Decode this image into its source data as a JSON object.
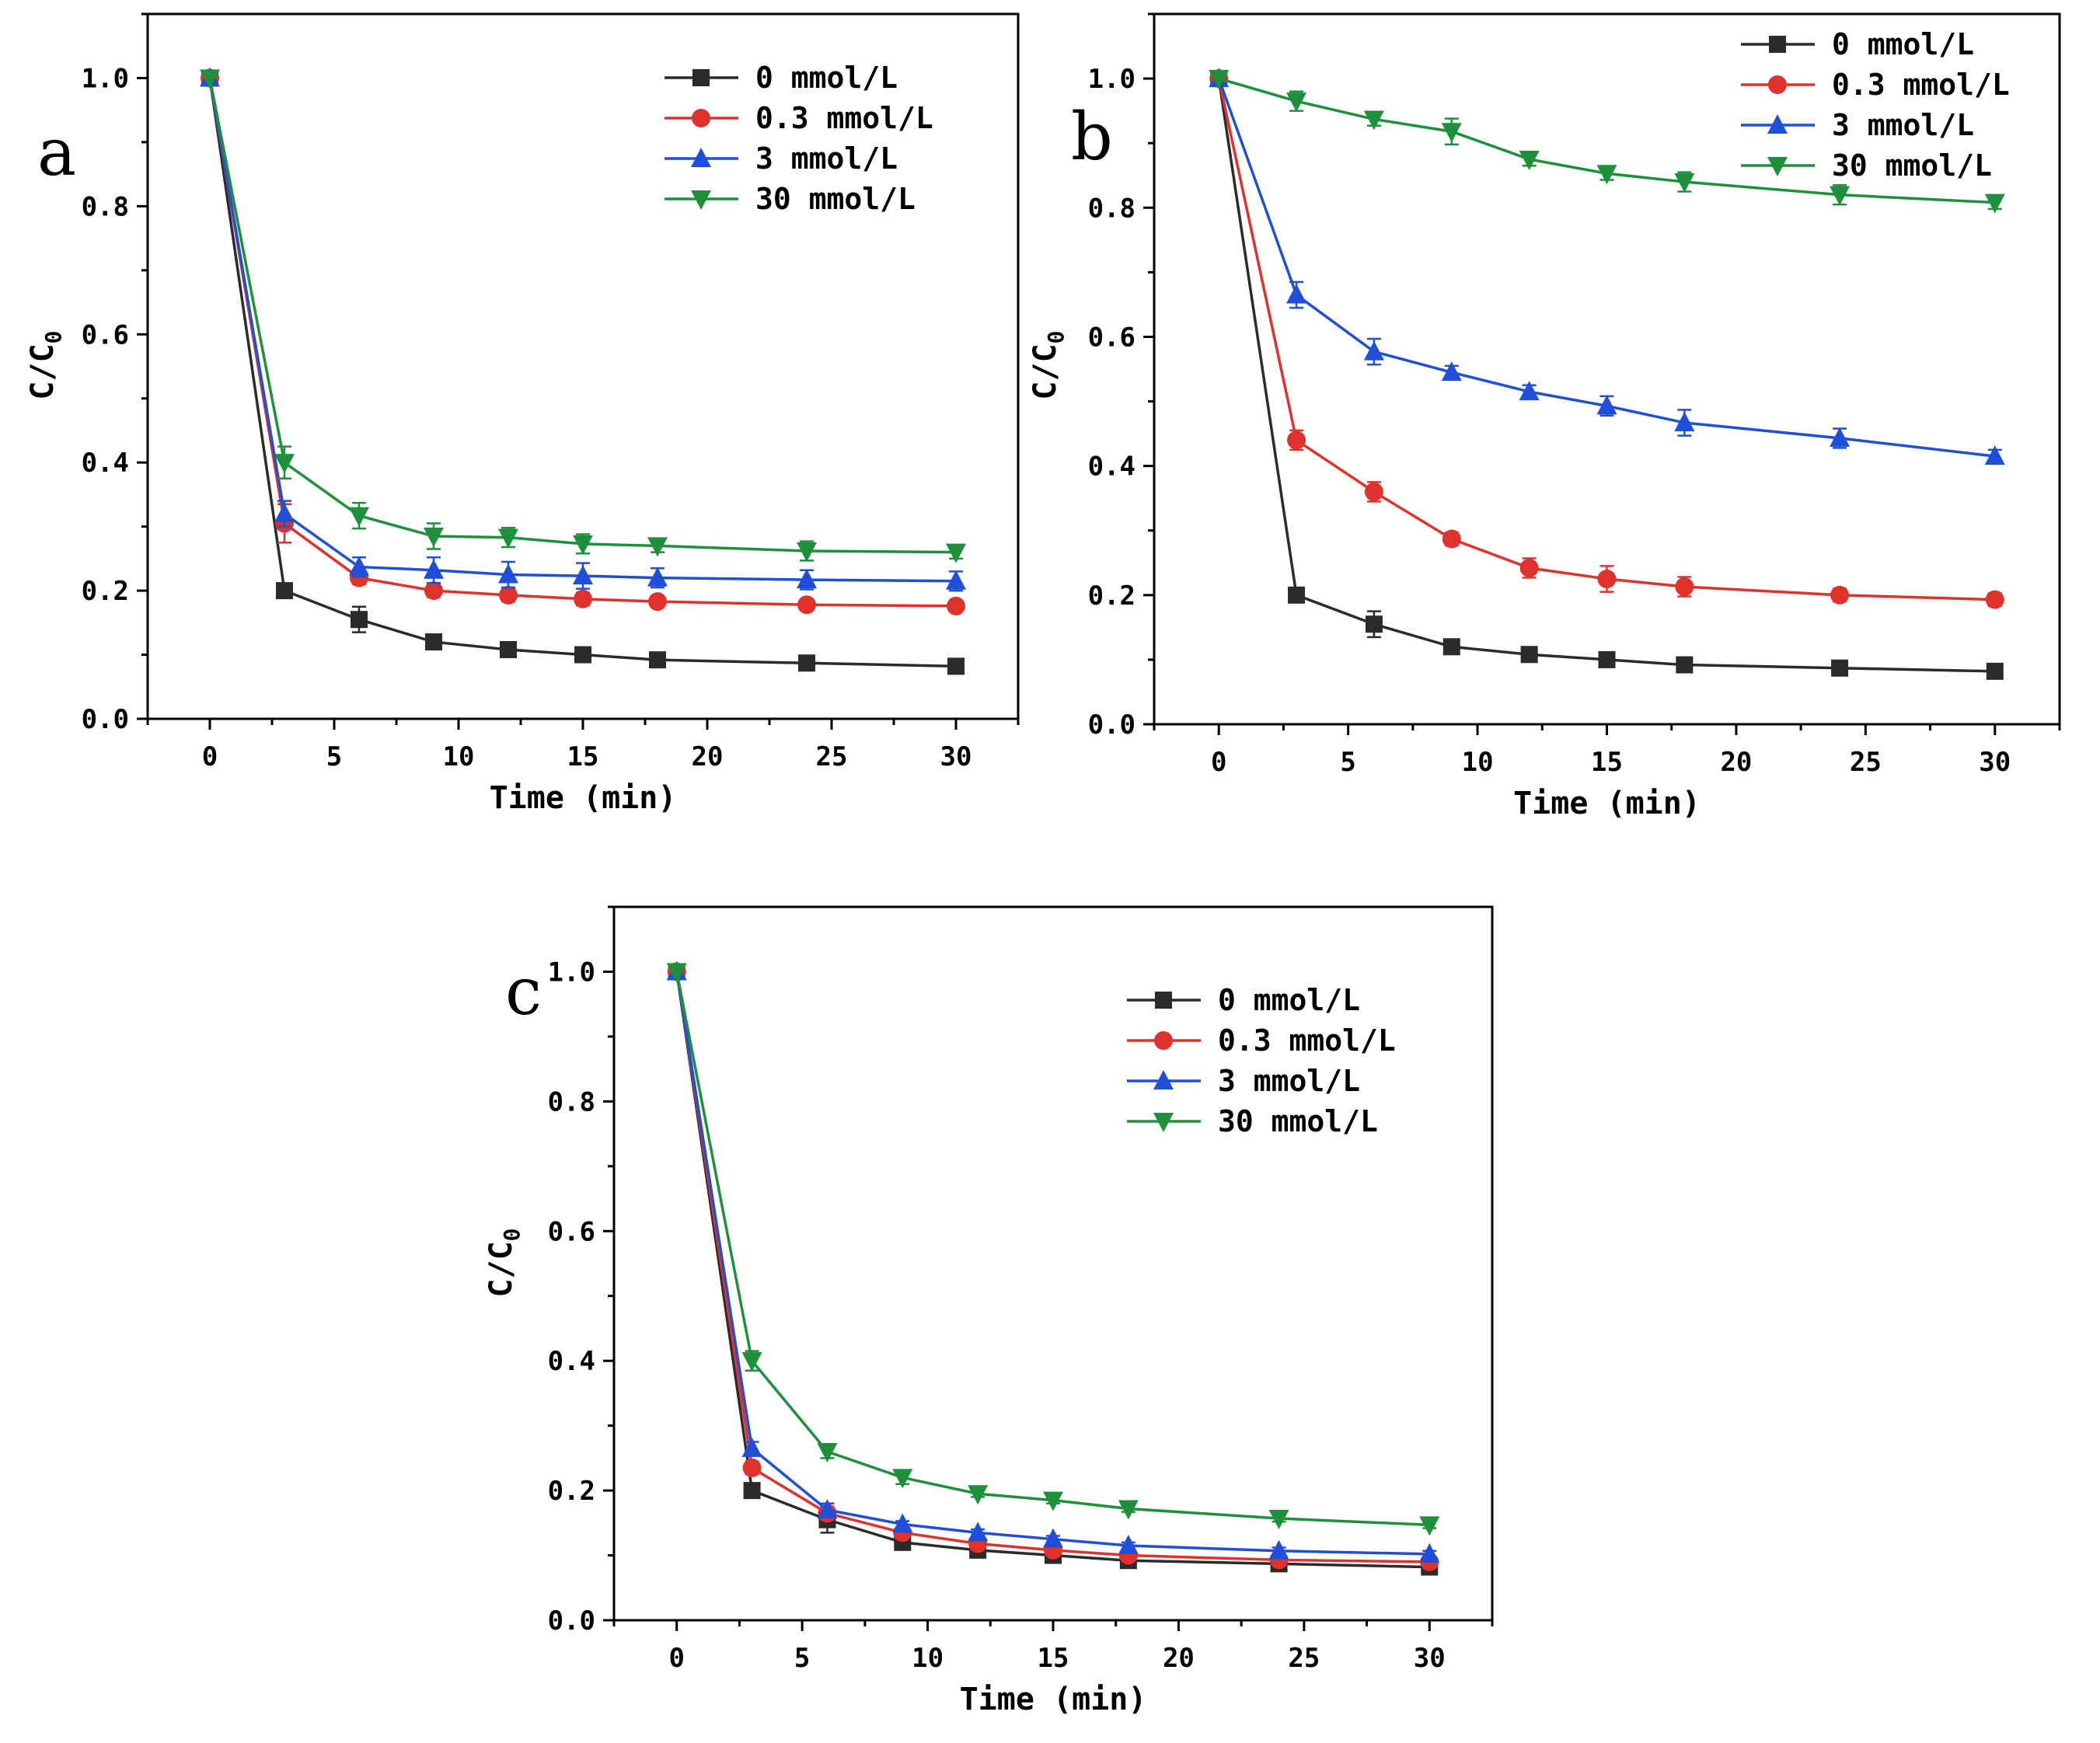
{
  "chart_data": [
    {
      "panel": "a",
      "type": "line",
      "xlabel": "Time (min)",
      "ylabel": "C/C",
      "ylabel_sub": "0",
      "xlim": [
        -2.5,
        32.5
      ],
      "ylim": [
        0,
        1.1
      ],
      "xticks": [
        0,
        5,
        10,
        15,
        20,
        25,
        30
      ],
      "yticks": [
        0.0,
        0.2,
        0.4,
        0.6,
        0.8,
        1.0
      ],
      "ytick_labels": [
        "0.0",
        "0.2",
        "0.4",
        "0.6",
        "0.8",
        "1.0"
      ],
      "legend_position": "top-right",
      "x": [
        0,
        3,
        6,
        9,
        12,
        15,
        18,
        24,
        30
      ],
      "series": [
        {
          "name": "0 mmol/L",
          "color": "#2b2b2b",
          "marker": "square",
          "values": [
            1.0,
            0.2,
            0.155,
            0.12,
            0.108,
            0.1,
            0.092,
            0.087,
            0.082
          ],
          "errors": [
            0,
            0,
            0.02,
            0,
            0,
            0,
            0,
            0,
            0
          ]
        },
        {
          "name": "0.3 mmol/L",
          "color": "#e0322d",
          "marker": "circle",
          "values": [
            1.0,
            0.305,
            0.22,
            0.2,
            0.193,
            0.187,
            0.183,
            0.178,
            0.176
          ],
          "errors": [
            0,
            0.03,
            0.01,
            0.01,
            0.01,
            0.01,
            0.005,
            0.005,
            0.005
          ]
        },
        {
          "name": "3 mmol/L",
          "color": "#1f4fd8",
          "marker": "triangle-up",
          "values": [
            1.0,
            0.32,
            0.237,
            0.232,
            0.225,
            0.223,
            0.22,
            0.217,
            0.215
          ],
          "errors": [
            0,
            0.02,
            0.015,
            0.02,
            0.02,
            0.02,
            0.015,
            0.015,
            0.015
          ]
        },
        {
          "name": "30 mmol/L",
          "color": "#1e8f3a",
          "marker": "triangle-down",
          "values": [
            1.0,
            0.4,
            0.317,
            0.285,
            0.283,
            0.273,
            0.27,
            0.262,
            0.26
          ],
          "errors": [
            0,
            0.025,
            0.02,
            0.02,
            0.015,
            0.015,
            0.01,
            0.015,
            0.01
          ]
        }
      ]
    },
    {
      "panel": "b",
      "type": "line",
      "xlabel": "Time (min)",
      "ylabel": "C/C",
      "ylabel_sub": "0",
      "xlim": [
        -2.5,
        32.5
      ],
      "ylim": [
        0,
        1.1
      ],
      "xticks": [
        0,
        5,
        10,
        15,
        20,
        25,
        30
      ],
      "yticks": [
        0.0,
        0.2,
        0.4,
        0.6,
        0.8,
        1.0
      ],
      "ytick_labels": [
        "0.0",
        "0.2",
        "0.4",
        "0.6",
        "0.8",
        "1.0"
      ],
      "legend_position": "top-right",
      "x": [
        0,
        3,
        6,
        9,
        12,
        15,
        18,
        24,
        30
      ],
      "series": [
        {
          "name": "0 mmol/L",
          "color": "#2b2b2b",
          "marker": "square",
          "values": [
            1.0,
            0.2,
            0.155,
            0.12,
            0.108,
            0.1,
            0.092,
            0.087,
            0.082
          ],
          "errors": [
            0,
            0,
            0.02,
            0,
            0,
            0,
            0,
            0,
            0
          ]
        },
        {
          "name": "0.3 mmol/L",
          "color": "#e0322d",
          "marker": "circle",
          "values": [
            1.0,
            0.44,
            0.36,
            0.287,
            0.242,
            0.225,
            0.213,
            0.2,
            0.193
          ],
          "errors": [
            0,
            0.015,
            0.015,
            0.01,
            0.015,
            0.02,
            0.015,
            0.01,
            0.01
          ]
        },
        {
          "name": "3 mmol/L",
          "color": "#1f4fd8",
          "marker": "triangle-up",
          "values": [
            1.0,
            0.665,
            0.577,
            0.545,
            0.515,
            0.493,
            0.467,
            0.443,
            0.415
          ],
          "errors": [
            0,
            0.02,
            0.02,
            0.01,
            0.01,
            0.015,
            0.02,
            0.015,
            0.01
          ]
        },
        {
          "name": "30 mmol/L",
          "color": "#1e8f3a",
          "marker": "triangle-down",
          "values": [
            1.0,
            0.965,
            0.937,
            0.918,
            0.875,
            0.853,
            0.84,
            0.82,
            0.808
          ],
          "errors": [
            0,
            0.015,
            0.01,
            0.02,
            0.01,
            0.01,
            0.015,
            0.015,
            0.01
          ]
        }
      ]
    },
    {
      "panel": "c",
      "type": "line",
      "xlabel": "Time (min)",
      "ylabel": "C/C",
      "ylabel_sub": "0",
      "xlim": [
        -2.5,
        32.5
      ],
      "ylim": [
        0,
        1.1
      ],
      "xticks": [
        0,
        5,
        10,
        15,
        20,
        25,
        30
      ],
      "yticks": [
        0.0,
        0.2,
        0.4,
        0.6,
        0.8,
        1.0
      ],
      "ytick_labels": [
        "0.0",
        "0.2",
        "0.4",
        "0.6",
        "0.8",
        "1.0"
      ],
      "legend_position": "top-right",
      "x": [
        0,
        3,
        6,
        9,
        12,
        15,
        18,
        24,
        30
      ],
      "series": [
        {
          "name": "0 mmol/L",
          "color": "#2b2b2b",
          "marker": "square",
          "values": [
            1.0,
            0.2,
            0.155,
            0.12,
            0.108,
            0.1,
            0.092,
            0.087,
            0.082
          ],
          "errors": [
            0,
            0,
            0.02,
            0,
            0,
            0,
            0,
            0,
            0
          ]
        },
        {
          "name": "0.3 mmol/L",
          "color": "#e0322d",
          "marker": "circle",
          "values": [
            1.0,
            0.235,
            0.165,
            0.135,
            0.118,
            0.108,
            0.1,
            0.093,
            0.09
          ],
          "errors": [
            0,
            0.01,
            0.01,
            0.005,
            0.005,
            0.005,
            0.005,
            0.005,
            0.005
          ]
        },
        {
          "name": "3 mmol/L",
          "color": "#1f4fd8",
          "marker": "triangle-up",
          "values": [
            1.0,
            0.265,
            0.17,
            0.148,
            0.135,
            0.125,
            0.115,
            0.107,
            0.102
          ],
          "errors": [
            0,
            0.01,
            0.01,
            0.005,
            0.005,
            0.005,
            0.005,
            0.005,
            0.005
          ]
        },
        {
          "name": "30 mmol/L",
          "color": "#1e8f3a",
          "marker": "triangle-down",
          "values": [
            1.0,
            0.4,
            0.26,
            0.22,
            0.195,
            0.185,
            0.172,
            0.157,
            0.147
          ],
          "errors": [
            0,
            0.015,
            0.01,
            0.01,
            0.005,
            0.005,
            0.005,
            0.005,
            0.005
          ]
        }
      ]
    }
  ]
}
